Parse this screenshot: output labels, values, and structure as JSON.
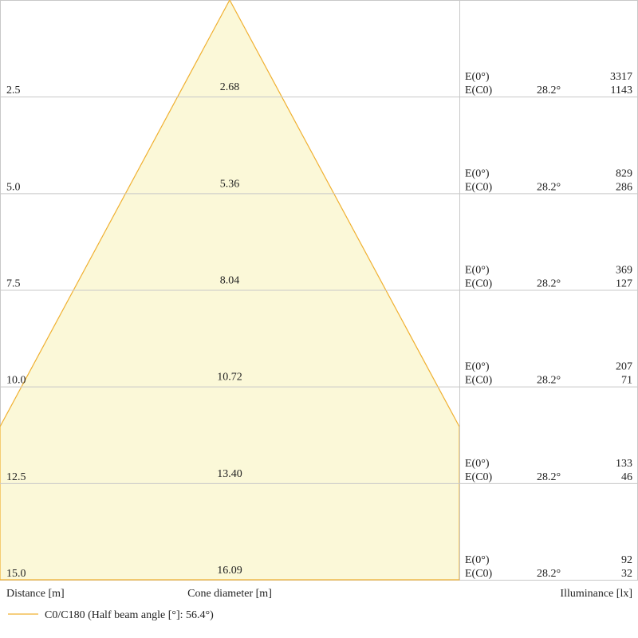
{
  "rows": [
    {
      "distance": "2.5",
      "diameter": "2.68",
      "e0": "3317",
      "ec0": "1143",
      "angle": "28.2°"
    },
    {
      "distance": "5.0",
      "diameter": "5.36",
      "e0": "829",
      "ec0": "286",
      "angle": "28.2°"
    },
    {
      "distance": "7.5",
      "diameter": "8.04",
      "e0": "369",
      "ec0": "127",
      "angle": "28.2°"
    },
    {
      "distance": "10.0",
      "diameter": "10.72",
      "e0": "207",
      "ec0": "71",
      "angle": "28.2°"
    },
    {
      "distance": "12.5",
      "diameter": "13.40",
      "e0": "133",
      "ec0": "46",
      "angle": "28.2°"
    },
    {
      "distance": "15.0",
      "diameter": "16.09",
      "e0": "92",
      "ec0": "32",
      "angle": "28.2°"
    }
  ],
  "labels": {
    "e0": "E(0°)",
    "ec0": "E(C0)"
  },
  "footer": {
    "distance": "Distance [m]",
    "diameter": "Cone diameter [m]",
    "illuminance": "Illuminance [lx]"
  },
  "legend": "C0/C180 (Half beam angle [°]: 56.4°)"
}
